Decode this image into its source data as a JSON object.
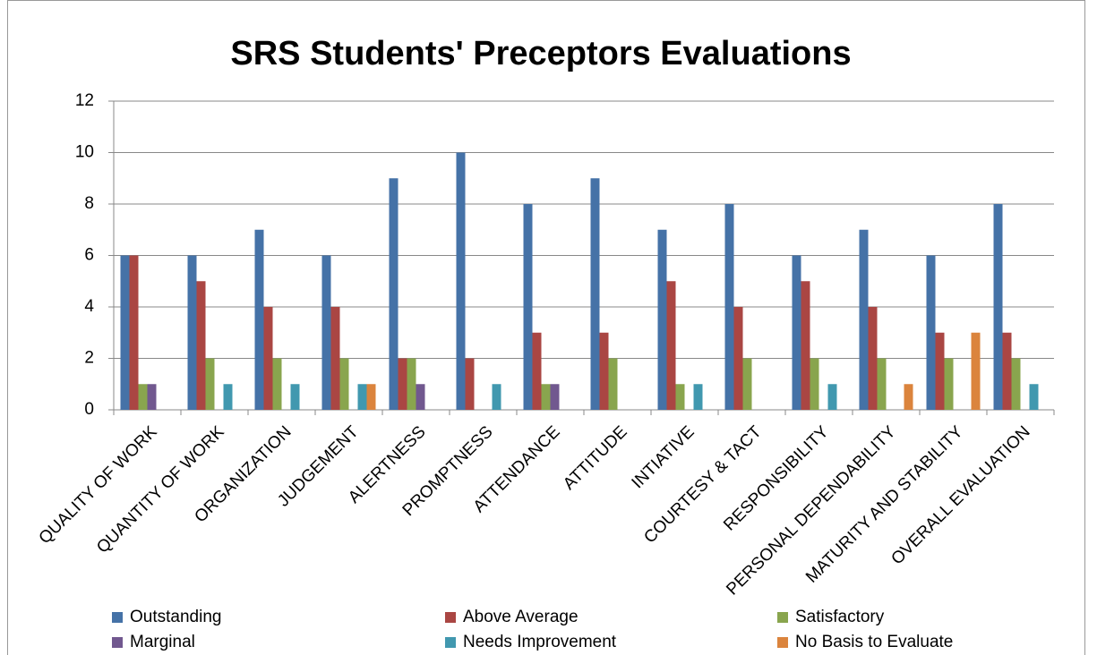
{
  "chart_data": {
    "type": "bar",
    "title": "SRS Students' Preceptors Evaluations",
    "categories": [
      "QUALITY OF WORK",
      "QUANTITY OF WORK",
      "ORGANIZATION",
      "JUDGEMENT",
      "ALERTNESS",
      "PROMPTNESS",
      "ATTENDANCE",
      "ATTITUDE",
      "INTIATIVE",
      "COURTESY & TACT",
      "RESPONSIBILITY",
      "PERSONAL DEPENDABILITY",
      "MATURITY AND STABILITY",
      "OVERALL EVALUATION"
    ],
    "series": [
      {
        "name": "Outstanding",
        "color": "#4572a7",
        "values": [
          6,
          6,
          7,
          6,
          9,
          10,
          8,
          9,
          7,
          8,
          6,
          7,
          6,
          8
        ]
      },
      {
        "name": "Above Average",
        "color": "#aa4643",
        "values": [
          6,
          5,
          4,
          4,
          2,
          2,
          3,
          3,
          5,
          4,
          5,
          4,
          3,
          3
        ]
      },
      {
        "name": "Satisfactory",
        "color": "#89a54e",
        "values": [
          1,
          2,
          2,
          2,
          2,
          0,
          1,
          2,
          1,
          2,
          2,
          2,
          2,
          2
        ]
      },
      {
        "name": "Marginal",
        "color": "#71588f",
        "values": [
          1,
          0,
          0,
          0,
          1,
          0,
          1,
          0,
          0,
          0,
          0,
          0,
          0,
          0
        ]
      },
      {
        "name": "Needs Improvement",
        "color": "#4198af",
        "values": [
          0,
          1,
          1,
          1,
          0,
          1,
          0,
          0,
          1,
          0,
          1,
          0,
          0,
          1
        ]
      },
      {
        "name": "No Basis to Evaluate",
        "color": "#db843d",
        "values": [
          0,
          0,
          0,
          1,
          0,
          0,
          0,
          0,
          0,
          0,
          0,
          1,
          3,
          0
        ]
      }
    ],
    "ylim": [
      0,
      12
    ],
    "yticks": [
      0,
      2,
      4,
      6,
      8,
      10,
      12
    ],
    "grid": true,
    "legend": "bottom"
  }
}
